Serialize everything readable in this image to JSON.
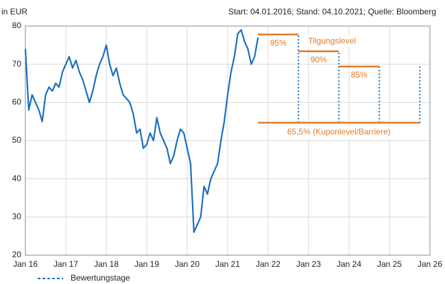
{
  "chart_data": {
    "type": "line",
    "unit_label": "in EUR",
    "subtitle": "Start: 04.01.2016; Stand: 04.10.2021; Quelle: Bloomberg",
    "xlim": [
      "2016-01",
      "2026-01"
    ],
    "xticks": [
      {
        "value": "2016-01",
        "label": "Jan 16"
      },
      {
        "value": "2017-01",
        "label": "Jan 17"
      },
      {
        "value": "2018-01",
        "label": "Jan 18"
      },
      {
        "value": "2019-01",
        "label": "Jan 19"
      },
      {
        "value": "2020-01",
        "label": "Jan 20"
      },
      {
        "value": "2021-01",
        "label": "Jan 21"
      },
      {
        "value": "2022-01",
        "label": "Jan 22"
      },
      {
        "value": "2023-01",
        "label": "Jan 23"
      },
      {
        "value": "2024-01",
        "label": "Jan 24"
      },
      {
        "value": "2025-01",
        "label": "Jan 25"
      },
      {
        "value": "2026-01",
        "label": "Jan 26"
      }
    ],
    "ylim": [
      20,
      80
    ],
    "yticks": [
      20,
      30,
      40,
      50,
      60,
      70,
      80
    ],
    "grid": true,
    "series": [
      {
        "color": "#1a6fc0",
        "x": [
          "2016-01",
          "2016-02",
          "2016-03",
          "2016-04",
          "2016-05",
          "2016-06",
          "2016-07",
          "2016-08",
          "2016-09",
          "2016-10",
          "2016-11",
          "2016-12",
          "2017-01",
          "2017-02",
          "2017-03",
          "2017-04",
          "2017-05",
          "2017-06",
          "2017-07",
          "2017-08",
          "2017-09",
          "2017-10",
          "2017-11",
          "2017-12",
          "2018-01",
          "2018-02",
          "2018-03",
          "2018-04",
          "2018-05",
          "2018-06",
          "2018-07",
          "2018-08",
          "2018-09",
          "2018-10",
          "2018-11",
          "2018-12",
          "2019-01",
          "2019-02",
          "2019-03",
          "2019-04",
          "2019-05",
          "2019-06",
          "2019-07",
          "2019-08",
          "2019-09",
          "2019-10",
          "2019-11",
          "2019-12",
          "2020-01",
          "2020-02",
          "2020-03",
          "2020-04",
          "2020-05",
          "2020-06",
          "2020-07",
          "2020-08",
          "2020-09",
          "2020-10",
          "2020-11",
          "2020-12",
          "2021-01",
          "2021-02",
          "2021-03",
          "2021-04",
          "2021-05",
          "2021-06",
          "2021-07",
          "2021-08",
          "2021-09",
          "2021-10"
        ],
        "values": [
          74,
          58,
          62,
          60,
          58,
          55,
          62,
          64,
          63,
          65,
          64,
          68,
          70,
          72,
          69,
          71,
          68,
          66,
          63,
          60,
          63,
          67,
          70,
          72,
          75,
          70,
          67,
          69,
          65,
          62,
          61,
          60,
          57,
          52,
          53,
          48,
          49,
          52,
          50,
          56,
          52,
          50,
          48,
          44,
          46,
          50,
          53,
          52,
          48,
          44,
          26,
          28,
          30,
          38,
          36,
          40,
          42,
          44,
          50,
          55,
          62,
          68,
          72,
          78,
          79,
          76,
          74,
          70,
          72,
          77
        ]
      }
    ],
    "levels": [
      {
        "label": "95%",
        "value": 77.8,
        "start": "2021-10",
        "end": "2022-10"
      },
      {
        "label": "90%",
        "value": 73.4,
        "start": "2022-10",
        "end": "2023-10"
      },
      {
        "label": "85%",
        "value": 69.4,
        "start": "2023-10",
        "end": "2024-10"
      }
    ],
    "levels_label": "Tilgungslevel",
    "barrier": {
      "label": "65,5% (Kuponlevel/Barriere)",
      "value": 54.7,
      "start": "2021-10",
      "end": "2025-10"
    },
    "level_color": "#e07b28",
    "valuation_dates": {
      "name": "Bewertungstage",
      "color": "#1a6fc0",
      "x": [
        "2022-10",
        "2023-10",
        "2024-10",
        "2025-10"
      ],
      "values": [
        77.8,
        73.4,
        69.4,
        69.4
      ]
    }
  }
}
